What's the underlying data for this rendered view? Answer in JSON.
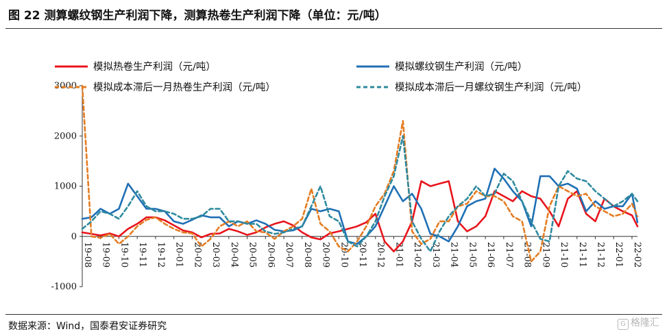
{
  "figure": {
    "title": "图 22  测算螺纹钢生产利润下降，测算热卷生产利润下降（单位：元/吨）",
    "source": "数据来源：Wind，国泰君安证券研究",
    "watermark": "格隆汇",
    "watermark_icon": "G"
  },
  "colors": {
    "hot_rolled": "#e8141c",
    "rebar": "#1f6fb5",
    "hot_rolled_lag": "#e47c22",
    "rebar_lag": "#2e8a9e"
  },
  "chart_data": {
    "type": "line",
    "title": "",
    "xlabel": "",
    "ylabel": "",
    "ylim": [
      -1000,
      3000
    ],
    "yticks": [
      -1000,
      0,
      1000,
      2000,
      3000
    ],
    "x_tick_labels": [
      "19-08",
      "19-09",
      "19-10",
      "19-11",
      "19-12",
      "20-01",
      "20-02",
      "20-03",
      "20-04",
      "20-05",
      "20-06",
      "20-07",
      "20-08",
      "20-09",
      "20-10",
      "20-11",
      "20-12",
      "21-01",
      "21-02",
      "21-03",
      "21-04",
      "21-05",
      "21-06",
      "21-07",
      "21-08",
      "21-09",
      "21-10",
      "21-11",
      "21-12",
      "22-01",
      "22-02"
    ],
    "x": [
      0,
      0.5,
      1,
      1.5,
      2,
      2.5,
      3,
      3.5,
      4,
      4.5,
      5,
      5.5,
      6,
      6.5,
      7,
      7.5,
      8,
      8.5,
      9,
      9.5,
      10,
      10.5,
      11,
      11.5,
      12,
      12.5,
      13,
      13.5,
      14,
      14.5,
      15,
      15.5,
      16,
      16.5,
      17,
      17.5,
      18,
      18.5,
      19,
      19.5,
      20,
      20.5,
      21,
      21.5,
      22,
      22.5,
      23,
      23.5,
      24,
      24.5,
      25,
      25.5,
      26,
      26.5,
      27,
      27.5,
      28,
      28.5,
      29,
      29.5,
      30,
      30.3
    ],
    "x_unit": "month index from 2019-08",
    "legend": {
      "position": "top",
      "columns": 2
    },
    "grid": false,
    "series": [
      {
        "name": "模拟热卷生产利润（元/吨）",
        "style": "solid",
        "color_key": "hot_rolled",
        "values": [
          80,
          50,
          20,
          60,
          0,
          150,
          250,
          380,
          380,
          320,
          220,
          120,
          80,
          -20,
          50,
          60,
          150,
          100,
          30,
          80,
          180,
          250,
          300,
          220,
          80,
          -20,
          -60,
          60,
          100,
          150,
          200,
          280,
          450,
          -100,
          -300,
          -100,
          300,
          1100,
          1000,
          1050,
          1100,
          300,
          100,
          200,
          400,
          900,
          800,
          700,
          900,
          800,
          750,
          500,
          200,
          750,
          900,
          450,
          300,
          750,
          600,
          500,
          420,
          200
        ]
      },
      {
        "name": "模拟螺纹钢生产利润（元/吨）",
        "style": "solid",
        "color_key": "rebar",
        "values": [
          350,
          380,
          550,
          450,
          550,
          1050,
          800,
          550,
          550,
          500,
          300,
          250,
          330,
          420,
          380,
          380,
          200,
          300,
          250,
          320,
          250,
          130,
          100,
          120,
          200,
          550,
          500,
          550,
          500,
          -100,
          -150,
          0,
          200,
          600,
          1000,
          700,
          850,
          550,
          50,
          0,
          -100,
          200,
          600,
          700,
          750,
          1350,
          1150,
          900,
          700,
          200,
          1200,
          1200,
          1000,
          1050,
          950,
          500,
          700,
          550,
          600,
          600,
          850,
          280
        ]
      },
      {
        "name": "模拟成本滞后一月热卷生产利润（元/吨）",
        "style": "dashed",
        "color_key": "hot_rolled_lag",
        "values": [
          3000,
          0,
          -30,
          50,
          -150,
          0,
          200,
          330,
          380,
          250,
          150,
          80,
          60,
          -200,
          -50,
          200,
          300,
          200,
          300,
          100,
          80,
          -50,
          100,
          200,
          350,
          950,
          250,
          100,
          -200,
          -300,
          -100,
          200,
          600,
          850,
          1300,
          2300,
          100,
          -150,
          -50,
          300,
          300,
          600,
          650,
          900,
          800,
          800,
          700,
          400,
          300,
          -500,
          -300,
          600,
          1000,
          900,
          800,
          850,
          600,
          500,
          400,
          450,
          650,
          400
        ]
      },
      {
        "name": "模拟成本滞后一月螺纹钢生产利润（元/吨）",
        "style": "dashed",
        "color_key": "rebar_lag",
        "values": [
          150,
          300,
          500,
          450,
          350,
          600,
          900,
          600,
          500,
          500,
          450,
          350,
          350,
          400,
          550,
          550,
          300,
          300,
          250,
          250,
          100,
          50,
          80,
          150,
          200,
          600,
          1000,
          400,
          300,
          -100,
          -200,
          0,
          300,
          800,
          1200,
          2000,
          300,
          -50,
          -300,
          100,
          400,
          600,
          750,
          1000,
          800,
          850,
          1250,
          1100,
          700,
          300,
          -50,
          -100,
          1000,
          1300,
          1150,
          1100,
          900,
          750,
          600,
          700,
          850,
          700
        ]
      }
    ]
  }
}
